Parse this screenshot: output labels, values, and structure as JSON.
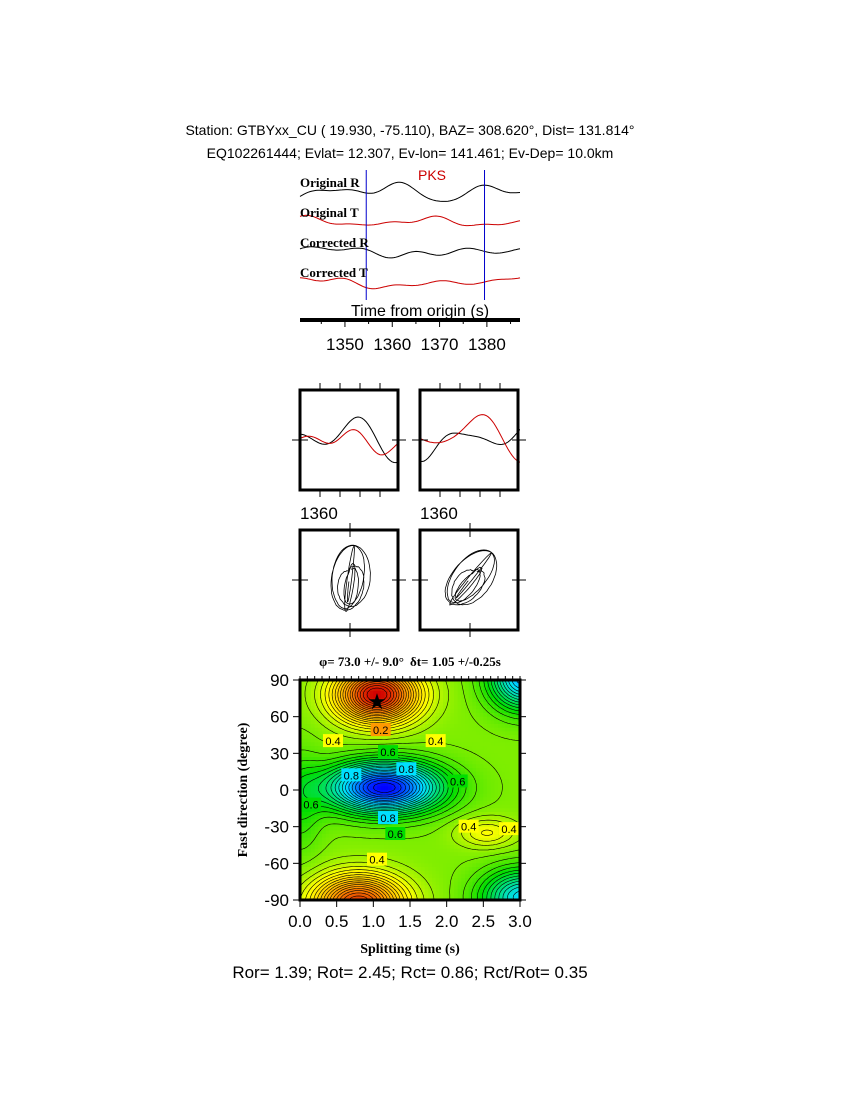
{
  "header": {
    "station_line": "Station: GTBYxx_CU (  19.930,  -75.110), BAZ=  308.620°, Dist=  131.814°",
    "event_line": "EQ102261444; Evlat=  12.307, Ev-lon= 141.461; Ev-Dep= 10.0km"
  },
  "chart_data": [
    {
      "type": "line",
      "panel": "waveforms",
      "traces": [
        {
          "name": "Original R",
          "color": "#000000"
        },
        {
          "name": "Original T",
          "color": "#cc0000"
        },
        {
          "name": "Corrected R",
          "color": "#000000"
        },
        {
          "name": "Corrected T",
          "color": "#cc0000"
        }
      ],
      "phase_label": "PKS",
      "phase_color": "#cc0000",
      "window_markers_s": [
        1354.5,
        1379.5
      ],
      "marker_color": "#0000cc",
      "xlabel": "Time from origin (s)",
      "xlim": [
        1340.5,
        1387
      ],
      "xticks": [
        1350,
        1360,
        1370,
        1380
      ]
    },
    {
      "type": "line",
      "panel": "window-comparison",
      "tick_labels": [
        "1360",
        "1360"
      ]
    },
    {
      "type": "scatter",
      "panel": "particle-motion"
    },
    {
      "type": "heatmap",
      "panel": "grid-search",
      "title_phi": "φ= 73.0 +/- 9.0°",
      "title_dt": "δt= 1.05 +/-0.25s",
      "best_phi": 73.0,
      "best_dt": 1.05,
      "xlabel": "Splitting time (s)",
      "ylabel": "Fast direction (degree)",
      "xlim": [
        0,
        3
      ],
      "ylim": [
        -90,
        90
      ],
      "xticks": [
        "0.0",
        "0.5",
        "1.0",
        "1.5",
        "2.0",
        "2.5",
        "3.0"
      ],
      "yticks": [
        "90",
        "60",
        "30",
        "0",
        "-30",
        "-60",
        "-90"
      ],
      "contour_labels": [
        {
          "text": "0.2",
          "dt": 1.1,
          "phi": 49
        },
        {
          "text": "0.4",
          "dt": 0.45,
          "phi": 40
        },
        {
          "text": "0.4",
          "dt": 1.85,
          "phi": 40
        },
        {
          "text": "0.6",
          "dt": 1.2,
          "phi": 31
        },
        {
          "text": "0.8",
          "dt": 0.7,
          "phi": 12
        },
        {
          "text": "0.8",
          "dt": 1.45,
          "phi": 17
        },
        {
          "text": "0.6",
          "dt": 2.15,
          "phi": 7
        },
        {
          "text": "0.6",
          "dt": 0.15,
          "phi": -12
        },
        {
          "text": "0.8",
          "dt": 1.2,
          "phi": -23
        },
        {
          "text": "0.6",
          "dt": 1.3,
          "phi": -36
        },
        {
          "text": "0.4",
          "dt": 2.3,
          "phi": -30
        },
        {
          "text": "0.4",
          "dt": 2.85,
          "phi": -32
        },
        {
          "text": "0.4",
          "dt": 1.05,
          "phi": -57
        }
      ],
      "colormap": [
        "#d00000",
        "#ff9900",
        "#ffff00",
        "#00dd00",
        "#00e0ff",
        "#0000ff"
      ]
    }
  ],
  "footer": {
    "ratios": "Ror= 1.39; Rot= 2.45; Rct= 0.86; Rct/Rot= 0.35"
  }
}
